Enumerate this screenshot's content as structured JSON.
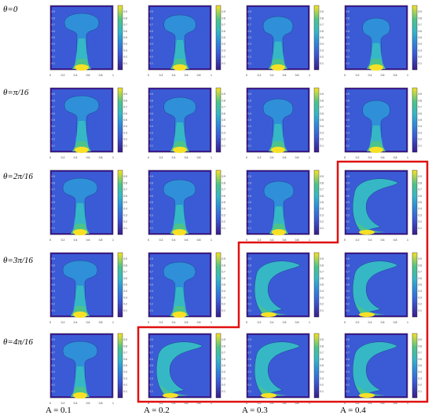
{
  "rows": [
    {
      "label_prefix": "θ=",
      "label_value": "0"
    },
    {
      "label_prefix": "θ=",
      "label_value": "π/16"
    },
    {
      "label_prefix": "θ=",
      "label_value": "2π/16"
    },
    {
      "label_prefix": "θ=",
      "label_value": "3π/16"
    },
    {
      "label_prefix": "θ=",
      "label_value": "4π/16"
    }
  ],
  "columns": [
    {
      "label": "A = 0.1"
    },
    {
      "label": "A = 0.2"
    },
    {
      "label": "A = 0.3"
    },
    {
      "label": "A = 0.4"
    }
  ],
  "axis_ticks_x": [
    "0",
    "0.2",
    "0.4",
    "0.6",
    "0.8",
    "1"
  ],
  "axis_ticks_y": [
    "0.1",
    "0.2",
    "0.3",
    "0.4",
    "0.5",
    "0.6",
    "0.7",
    "0.8",
    "0.9"
  ],
  "colorbar_ticks": [
    "0.1",
    "0.2",
    "0.3",
    "0.4",
    "0.5",
    "0.6",
    "0.7",
    "0.8",
    "0.9"
  ],
  "colors": {
    "background_blue": "#3b5bd6",
    "mid_blue": "#2f8fd8",
    "cyan": "#36b7c6",
    "green": "#4cc38a",
    "yellow": "#f8e125",
    "dark_edge": "#3a1c8a",
    "highlight_border": "#e01010"
  },
  "regimes": [
    [
      "plume",
      "plume",
      "plume",
      "plume"
    ],
    [
      "plume",
      "plume",
      "plume",
      "plume"
    ],
    [
      "plume",
      "plume",
      "plume",
      "circulation"
    ],
    [
      "plume",
      "plume",
      "circulation",
      "circulation"
    ],
    [
      "plume",
      "circulation",
      "circulation",
      "circulation"
    ]
  ]
}
